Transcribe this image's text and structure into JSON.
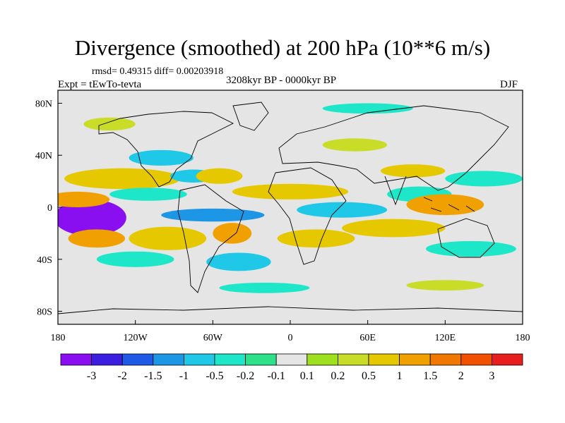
{
  "title": "Divergence (smoothed) at 200 hPa (10**6 m/s)",
  "stats_text": "rmsd= 0.49315 diff= 0.00203918",
  "experiment": "Expt = tEwTo-tevta",
  "period": "3208kyr BP - 0000kyr BP",
  "season": "DJF",
  "x_ticks": [
    {
      "lon": -180,
      "label": "180"
    },
    {
      "lon": -120,
      "label": "120W"
    },
    {
      "lon": -60,
      "label": "60W"
    },
    {
      "lon": 0,
      "label": "0"
    },
    {
      "lon": 60,
      "label": "60E"
    },
    {
      "lon": 120,
      "label": "120E"
    },
    {
      "lon": 180,
      "label": "180"
    }
  ],
  "y_ticks": [
    {
      "lat": 80,
      "label": "80N"
    },
    {
      "lat": 40,
      "label": "40N"
    },
    {
      "lat": 0,
      "label": "0"
    },
    {
      "lat": -40,
      "label": "40S"
    },
    {
      "lat": -80,
      "label": "80S"
    }
  ],
  "colorbar": {
    "colors": [
      "#8a0ff0",
      "#3c1ee0",
      "#1e5ae6",
      "#1e96e6",
      "#1ec8e6",
      "#1ee6c8",
      "#2fe08a",
      "#e5e5e5",
      "#9ee01e",
      "#c8dc28",
      "#e6c800",
      "#f0a000",
      "#f07800",
      "#f05000",
      "#e61e1e"
    ],
    "labels": [
      "-3",
      "-2",
      "-1.5",
      "-1",
      "-0.5",
      "-0.2",
      "-0.1",
      "0.1",
      "0.2",
      "0.5",
      "1",
      "1.5",
      "2",
      "3"
    ]
  },
  "field_blobs": [
    {
      "lon": -155,
      "lat": -8,
      "rx": 28,
      "ry": 14,
      "v": -3.2
    },
    {
      "lon": -165,
      "lat": 6,
      "rx": 25,
      "ry": 6,
      "v": 1.4
    },
    {
      "lon": -150,
      "lat": -24,
      "rx": 22,
      "ry": 7,
      "v": 1.1
    },
    {
      "lon": -130,
      "lat": 22,
      "rx": 45,
      "ry": 8,
      "v": 0.7
    },
    {
      "lon": -100,
      "lat": 38,
      "rx": 25,
      "ry": 6,
      "v": -0.6
    },
    {
      "lon": -75,
      "lat": 24,
      "rx": 18,
      "ry": 5,
      "v": -1.0
    },
    {
      "lon": -55,
      "lat": 24,
      "rx": 18,
      "ry": 6,
      "v": 0.6
    },
    {
      "lon": -110,
      "lat": 10,
      "rx": 30,
      "ry": 5,
      "v": -0.4
    },
    {
      "lon": -60,
      "lat": -6,
      "rx": 40,
      "ry": 5,
      "v": -1.2
    },
    {
      "lon": -95,
      "lat": -24,
      "rx": 30,
      "ry": 9,
      "v": 0.6
    },
    {
      "lon": -45,
      "lat": -20,
      "rx": 15,
      "ry": 8,
      "v": 1.0
    },
    {
      "lon": -120,
      "lat": -40,
      "rx": 30,
      "ry": 6,
      "v": -0.5
    },
    {
      "lon": -40,
      "lat": -42,
      "rx": 25,
      "ry": 7,
      "v": -0.6
    },
    {
      "lon": 0,
      "lat": 12,
      "rx": 45,
      "ry": 6,
      "v": 0.8
    },
    {
      "lon": 40,
      "lat": -2,
      "rx": 35,
      "ry": 6,
      "v": -0.8
    },
    {
      "lon": 20,
      "lat": -24,
      "rx": 30,
      "ry": 7,
      "v": 0.5
    },
    {
      "lon": 80,
      "lat": -16,
      "rx": 40,
      "ry": 7,
      "v": 0.6
    },
    {
      "lon": 100,
      "lat": 10,
      "rx": 25,
      "ry": 6,
      "v": -0.5
    },
    {
      "lon": 120,
      "lat": 2,
      "rx": 30,
      "ry": 8,
      "v": 1.2
    },
    {
      "lon": 150,
      "lat": 22,
      "rx": 30,
      "ry": 6,
      "v": -0.4
    },
    {
      "lon": 140,
      "lat": -32,
      "rx": 35,
      "ry": 6,
      "v": -0.4
    },
    {
      "lon": 95,
      "lat": 28,
      "rx": 25,
      "ry": 5,
      "v": 0.6
    },
    {
      "lon": 50,
      "lat": 48,
      "rx": 25,
      "ry": 5,
      "v": 0.4
    },
    {
      "lon": -140,
      "lat": 64,
      "rx": 20,
      "ry": 5,
      "v": 0.3
    },
    {
      "lon": 60,
      "lat": 76,
      "rx": 35,
      "ry": 4,
      "v": -0.3
    },
    {
      "lon": -20,
      "lat": -62,
      "rx": 35,
      "ry": 4,
      "v": -0.3
    },
    {
      "lon": 120,
      "lat": -60,
      "rx": 30,
      "ry": 4,
      "v": 0.3
    }
  ]
}
